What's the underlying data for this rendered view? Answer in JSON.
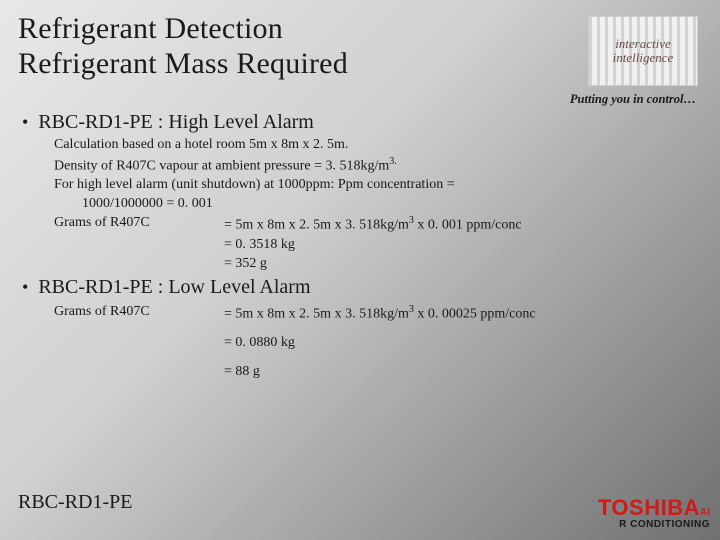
{
  "title": {
    "line1": "Refrigerant Detection",
    "line2": "Refrigerant Mass Required"
  },
  "logo": {
    "line1": "interactive",
    "line2": "intelligence"
  },
  "tagline": "Putting you in control…",
  "sections": [
    {
      "heading": "RBC-RD1-PE : High Level Alarm",
      "lines": [
        {
          "text": "Calculation based on a hotel room 5m x 8m x 2. 5m."
        },
        {
          "html": "Density of R407C vapour at ambient pressure = 3. 518kg/m<sup>3.</sup>"
        },
        {
          "text": "For high level alarm (unit shutdown) at 1000ppm: Ppm concentration ="
        },
        {
          "text": "1000/1000000 = 0. 001",
          "indent": true
        },
        {
          "left": "Grams of R407C",
          "right_html": "= 5m x 8m x 2. 5m x 3. 518kg/m<sup>3</sup> x 0. 001 ppm/conc"
        },
        {
          "eq": "= 0. 3518 kg"
        },
        {
          "eq": "= 352 g"
        }
      ]
    },
    {
      "heading": "RBC-RD1-PE : Low Level Alarm",
      "lines": [
        {
          "left": "Grams of R407C",
          "right_html": "= 5m x 8m x 2. 5m x 3. 518kg/m<sup>3</sup> x 0. 00025 ppm/conc"
        },
        {
          "eq": "= 0. 0880 kg",
          "spaced": true
        },
        {
          "eq": "= 88 g",
          "spaced": true
        }
      ]
    }
  ],
  "footer_model": "RBC-RD1-PE",
  "brand": {
    "main": "TOSHIBA",
    "suffix": "AI",
    "sub": "R CONDITIONING"
  },
  "colors": {
    "brand_red": "#d11a1a",
    "text": "#1a1a1a"
  }
}
